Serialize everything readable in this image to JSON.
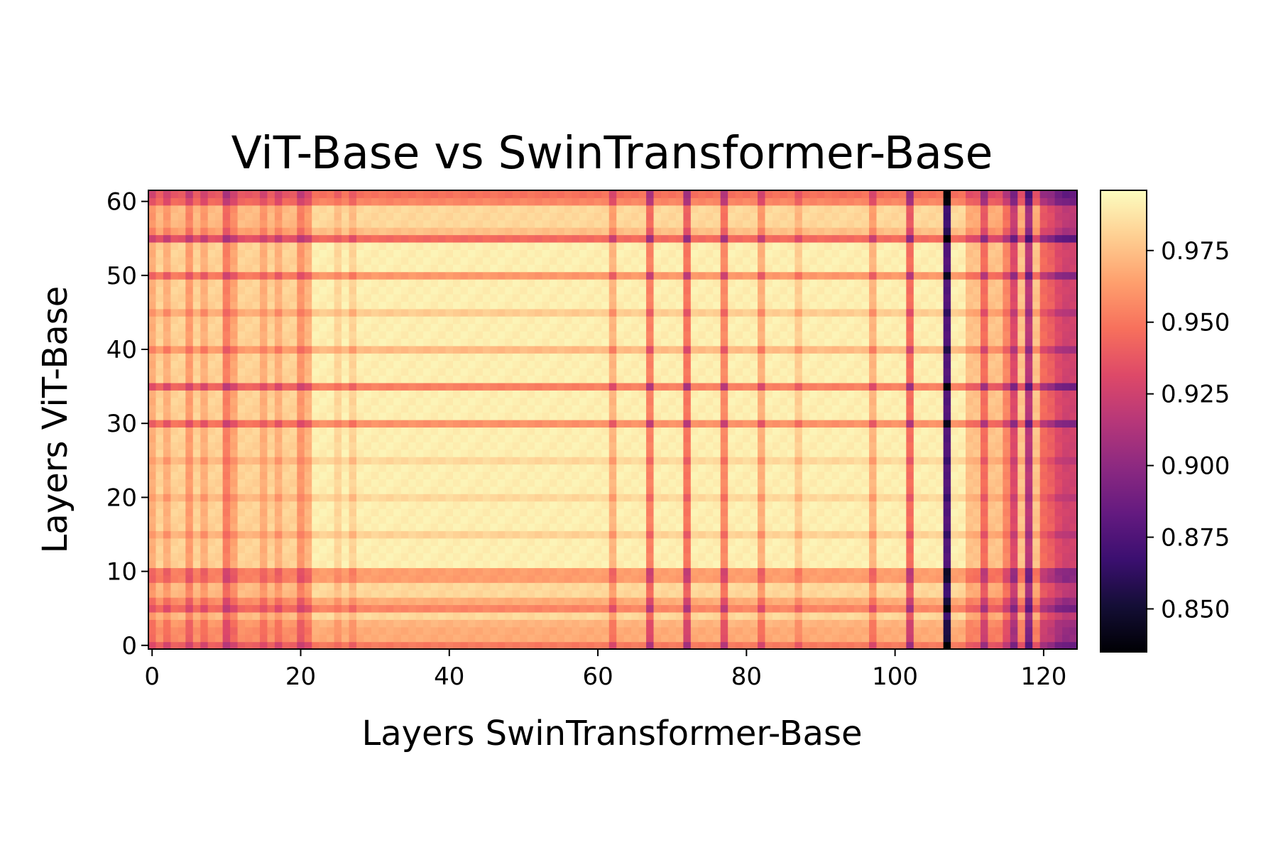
{
  "chart_data": {
    "type": "heatmap",
    "title": "ViT-Base vs SwinTransformer-Base",
    "xlabel": "Layers SwinTransformer-Base",
    "ylabel": "Layers ViT-Base",
    "x_range": [
      0,
      124
    ],
    "y_range": [
      0,
      61
    ],
    "x_ticks": [
      "0",
      "20",
      "40",
      "60",
      "80",
      "100",
      "120"
    ],
    "y_ticks": [
      "0",
      "10",
      "20",
      "30",
      "40",
      "50",
      "60"
    ],
    "colormap": "magma",
    "color_range": [
      0.835,
      0.996
    ],
    "colorbar_ticks": [
      "0.850",
      "0.875",
      "0.900",
      "0.925",
      "0.950",
      "0.975"
    ],
    "colorbar_position": "right",
    "grid": false,
    "value_model": {
      "base": 0.993,
      "column_drops": [
        {
          "x": 0,
          "drop": 0.012
        },
        {
          "x": 2,
          "drop": 0.012
        },
        {
          "x": 5,
          "drop": 0.018
        },
        {
          "x": 7,
          "drop": 0.012
        },
        {
          "x": 10,
          "drop": 0.028
        },
        {
          "x": 11,
          "drop": 0.015
        },
        {
          "x": 15,
          "drop": 0.012
        },
        {
          "x": 17,
          "drop": 0.012
        },
        {
          "x": 20,
          "drop": 0.02
        },
        {
          "x": 21,
          "drop": 0.02
        },
        {
          "x": 25,
          "drop": 0.008
        },
        {
          "x": 27,
          "drop": 0.01
        },
        {
          "x": 62,
          "drop": 0.02
        },
        {
          "x": 67,
          "drop": 0.038
        },
        {
          "x": 72,
          "drop": 0.042
        },
        {
          "x": 77,
          "drop": 0.035
        },
        {
          "x": 82,
          "drop": 0.022
        },
        {
          "x": 87,
          "drop": 0.012
        },
        {
          "x": 97,
          "drop": 0.02
        },
        {
          "x": 102,
          "drop": 0.045
        },
        {
          "x": 107,
          "drop": 0.115
        },
        {
          "x": 112,
          "drop": 0.03
        },
        {
          "x": 115,
          "drop": 0.02
        },
        {
          "x": 116,
          "drop": 0.045
        },
        {
          "x": 118,
          "drop": 0.06
        },
        {
          "x": 120,
          "drop": 0.03
        },
        {
          "x": 121,
          "drop": 0.035
        },
        {
          "x": 122,
          "drop": 0.045
        },
        {
          "x": 123,
          "drop": 0.05
        },
        {
          "x": 124,
          "drop": 0.05
        }
      ],
      "row_drops": [
        {
          "y": 0,
          "drop": 0.032
        },
        {
          "y": 1,
          "drop": 0.015
        },
        {
          "y": 2,
          "drop": 0.015
        },
        {
          "y": 3,
          "drop": 0.012
        },
        {
          "y": 5,
          "drop": 0.028
        },
        {
          "y": 6,
          "drop": 0.015
        },
        {
          "y": 9,
          "drop": 0.02
        },
        {
          "y": 10,
          "drop": 0.02
        },
        {
          "y": 15,
          "drop": 0.01
        },
        {
          "y": 20,
          "drop": 0.008
        },
        {
          "y": 25,
          "drop": 0.008
        },
        {
          "y": 30,
          "drop": 0.032
        },
        {
          "y": 35,
          "drop": 0.038
        },
        {
          "y": 40,
          "drop": 0.018
        },
        {
          "y": 45,
          "drop": 0.012
        },
        {
          "y": 50,
          "drop": 0.03
        },
        {
          "y": 55,
          "drop": 0.038
        },
        {
          "y": 56,
          "drop": 0.008
        },
        {
          "y": 60,
          "drop": 0.028
        },
        {
          "y": 61,
          "drop": 0.035
        }
      ],
      "region_drops": [
        {
          "x_from": 0,
          "x_to": 20,
          "drop": 0.01
        },
        {
          "x_from": 110,
          "x_to": 124,
          "drop": 0.015
        },
        {
          "y_from": 0,
          "y_to": 10,
          "drop": 0.008
        },
        {
          "y_from": 55,
          "y_to": 61,
          "drop": 0.008
        }
      ]
    }
  }
}
